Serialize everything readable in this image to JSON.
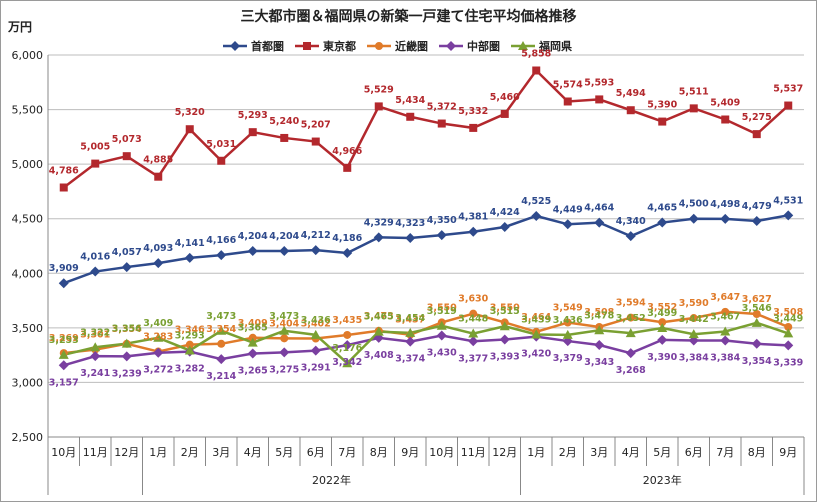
{
  "chart_data": {
    "type": "line",
    "title": "三大都市圏＆福岡県の新築一戸建て住宅平均価格推移",
    "ylabel": "万円",
    "ylim": [
      2500,
      6000
    ],
    "yticks": [
      "2,500",
      "3,000",
      "3,500",
      "4,000",
      "4,500",
      "5,000",
      "5,500",
      "6,000"
    ],
    "ytick_values": [
      2500,
      3000,
      3500,
      4000,
      4500,
      5000,
      5500,
      6000
    ],
    "categories": [
      "10月",
      "11月",
      "12月",
      "1月",
      "2月",
      "3月",
      "4月",
      "5月",
      "6月",
      "7月",
      "8月",
      "9月",
      "10月",
      "11月",
      "12月",
      "1月",
      "2月",
      "3月",
      "4月",
      "5月",
      "6月",
      "7月",
      "8月",
      "9月"
    ],
    "year_labels": [
      "2022年",
      "2023年"
    ],
    "grid": true,
    "legend_position": "top",
    "series": [
      {
        "name": "首都圏",
        "color": "#2e4a8c",
        "marker": "diamond",
        "values": [
          3909,
          4016,
          4057,
          4093,
          4141,
          4166,
          4204,
          4204,
          4212,
          4186,
          4329,
          4323,
          4350,
          4381,
          4424,
          4525,
          4449,
          4464,
          4340,
          4465,
          4500,
          4498,
          4479,
          4531
        ],
        "labels": [
          "3,909",
          "4,016",
          "4,057",
          "4,093",
          "4,141",
          "4,166",
          "4,204",
          "4,204",
          "4,212",
          "4,186",
          "4,329",
          "4,323",
          "4,350",
          "4,381",
          "4,424",
          "4,525",
          "4,449",
          "4,464",
          "4,340",
          "4,465",
          "4,500",
          "4,498",
          "4,479",
          "4,531"
        ]
      },
      {
        "name": "東京都",
        "color": "#b3282d",
        "marker": "square",
        "values": [
          4786,
          5005,
          5073,
          4885,
          5320,
          5031,
          5293,
          5240,
          5207,
          4966,
          5529,
          5434,
          5372,
          5332,
          5460,
          5858,
          5574,
          5593,
          5494,
          5390,
          5511,
          5409,
          5275,
          5537
        ],
        "labels": [
          "4,786",
          "5,005",
          "5,073",
          "4,885",
          "5,320",
          "5,031",
          "5,293",
          "5,240",
          "5,207",
          "4,966",
          "5,529",
          "5,434",
          "5,372",
          "5,332",
          "5,460",
          "5,858",
          "5,574",
          "5,593",
          "5,494",
          "5,390",
          "5,511",
          "5,409",
          "5,275",
          "5,537"
        ]
      },
      {
        "name": "近畿圏",
        "color": "#e07b2a",
        "marker": "circle",
        "values": [
          3269,
          3301,
          3354,
          3283,
          3346,
          3354,
          3409,
          3404,
          3402,
          3435,
          3473,
          3437,
          3550,
          3630,
          3550,
          3464,
          3549,
          3508,
          3594,
          3552,
          3590,
          3647,
          3627,
          3508
        ],
        "labels": [
          "3,269",
          "3,301",
          "3,354",
          "3,283",
          "3,346",
          "3,354",
          "3,409",
          "3,404",
          "3,402",
          "3,435",
          "3,473",
          "3,437",
          "3,550",
          "3,630",
          "3,550",
          "3,464",
          "3,549",
          "3,508",
          "3,594",
          "3,552",
          "3,590",
          "3,647",
          "3,627",
          "3,508"
        ]
      },
      {
        "name": "中部圏",
        "color": "#7a3fa0",
        "marker": "diamond",
        "values": [
          3157,
          3241,
          3239,
          3272,
          3282,
          3214,
          3265,
          3275,
          3291,
          3342,
          3408,
          3374,
          3430,
          3377,
          3393,
          3420,
          3379,
          3343,
          3268,
          3390,
          3384,
          3384,
          3354,
          3339
        ],
        "labels": [
          "3,157",
          "3,241",
          "3,239",
          "3,272",
          "3,282",
          "3,214",
          "3,265",
          "3,275",
          "3,291",
          "3,342",
          "3,408",
          "3,374",
          "3,430",
          "3,377",
          "3,393",
          "3,420",
          "3,379",
          "3,343",
          "3,268",
          "3,390",
          "3,384",
          "3,384",
          "3,354",
          "3,339"
        ]
      },
      {
        "name": "福岡県",
        "color": "#7aa032",
        "marker": "triangle",
        "values": [
          3253,
          3322,
          3356,
          3409,
          3293,
          3473,
          3365,
          3473,
          3436,
          3176,
          3465,
          3454,
          3519,
          3448,
          3515,
          3439,
          3436,
          3478,
          3452,
          3499,
          3442,
          3467,
          3546,
          3449
        ],
        "labels": [
          "3,253",
          "3,322",
          "3,356",
          "3,409",
          "3,293",
          "3,473",
          "3,365",
          "3,473",
          "3,436",
          "3,176",
          "3,465",
          "3,454",
          "3,519",
          "3,448",
          "3,515",
          "3,439",
          "3,436",
          "3,478",
          "3,452",
          "3,499",
          "3,442",
          "3,467",
          "3,546",
          "3,449"
        ]
      }
    ]
  }
}
